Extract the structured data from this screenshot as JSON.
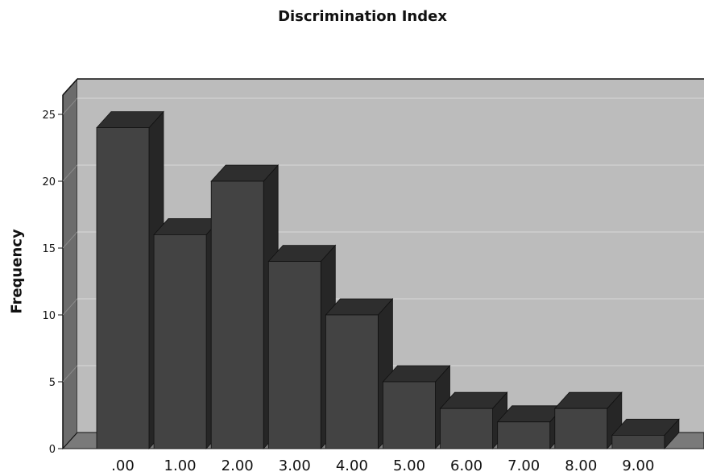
{
  "chart_data": {
    "type": "bar",
    "title": "Discrimination Index",
    "xlabel": "",
    "ylabel": "Frequency",
    "categories": [
      ".00",
      "1.00",
      "2.00",
      "3.00",
      "4.00",
      "5.00",
      "6.00",
      "7.00",
      "8.00",
      "9.00"
    ],
    "values": [
      24,
      16,
      20,
      14,
      10,
      5,
      3,
      2,
      3,
      1
    ],
    "yticks": [
      "0",
      "5",
      "10",
      "15",
      "20",
      "25"
    ],
    "ylim": [
      0,
      25.5
    ],
    "grid": true,
    "legend": "none",
    "colors": {
      "bar_front": "#434343",
      "bar_side": "#262626",
      "bar_top": "#2e2e2e",
      "plot_back": "#bcbcbc",
      "plot_left_wall": "#6c6c6c",
      "plot_floor": "#7a7a7a",
      "gridline": "#d2d2d2"
    }
  }
}
